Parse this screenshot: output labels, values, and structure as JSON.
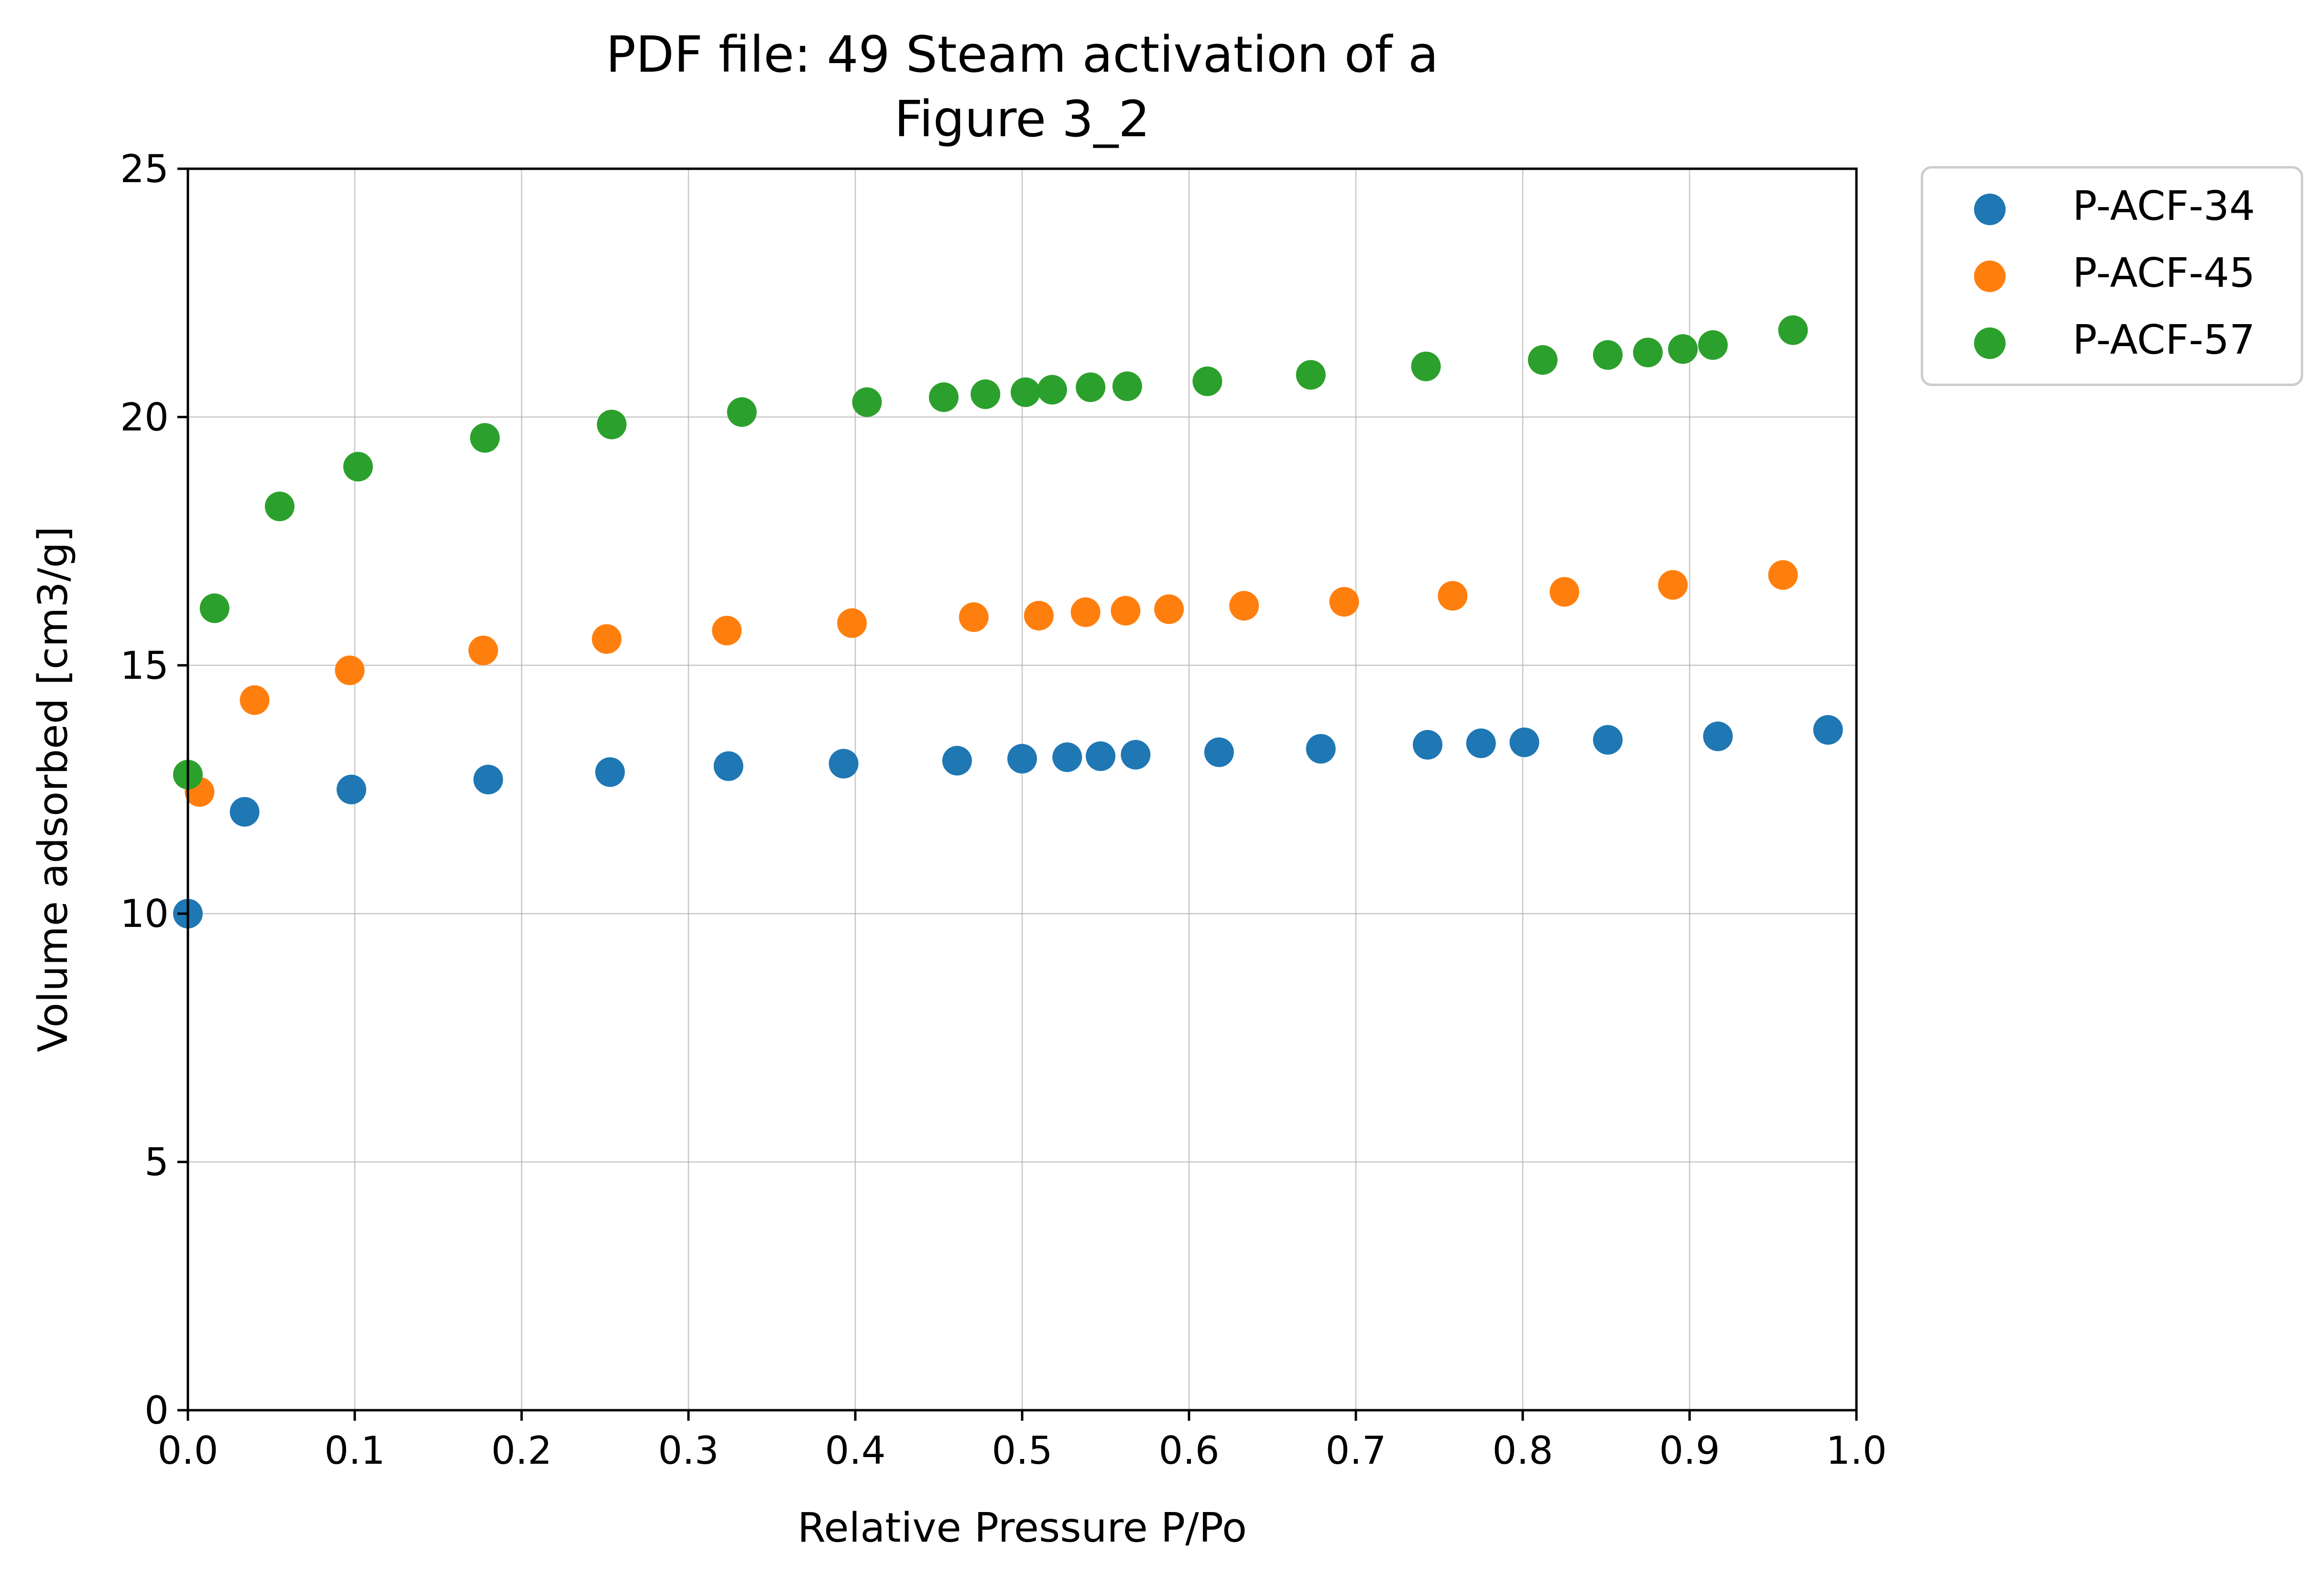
{
  "chart_data": {
    "type": "scatter",
    "title": [
      "PDF file: 49 Steam activation of a",
      "Figure 3_2"
    ],
    "xlabel": "Relative Pressure P/Po",
    "ylabel": "Volume adsorbed [cm3/g]",
    "xlim": [
      0.0,
      1.0
    ],
    "ylim": [
      0,
      25
    ],
    "xticks": [
      "0.0",
      "0.1",
      "0.2",
      "0.3",
      "0.4",
      "0.5",
      "0.6",
      "0.7",
      "0.8",
      "0.9",
      "1.0"
    ],
    "yticks": [
      "0",
      "5",
      "10",
      "15",
      "20",
      "25"
    ],
    "grid": true,
    "legend_position": "outside-top-right",
    "series": [
      {
        "name": "P-ACF-34",
        "color": "#1f77b4",
        "x": [
          0.0,
          0.034,
          0.098,
          0.18,
          0.253,
          0.324,
          0.393,
          0.461,
          0.5,
          0.527,
          0.547,
          0.568,
          0.618,
          0.679,
          0.743,
          0.775,
          0.801,
          0.851,
          0.917,
          0.983
        ],
        "y": [
          10.0,
          12.05,
          12.5,
          12.7,
          12.85,
          12.97,
          13.02,
          13.08,
          13.12,
          13.15,
          13.17,
          13.2,
          13.25,
          13.32,
          13.4,
          13.43,
          13.45,
          13.5,
          13.57,
          13.7
        ]
      },
      {
        "name": "P-ACF-45",
        "color": "#ff7f0e",
        "x": [
          0.007,
          0.04,
          0.097,
          0.177,
          0.251,
          0.323,
          0.398,
          0.471,
          0.51,
          0.538,
          0.562,
          0.588,
          0.633,
          0.693,
          0.758,
          0.825,
          0.89,
          0.956
        ],
        "y": [
          12.45,
          14.3,
          14.9,
          15.3,
          15.53,
          15.7,
          15.85,
          15.97,
          16.0,
          16.07,
          16.1,
          16.13,
          16.2,
          16.28,
          16.4,
          16.48,
          16.62,
          16.82
        ]
      },
      {
        "name": "P-ACF-57",
        "color": "#2ca02c",
        "x": [
          0.0,
          0.016,
          0.055,
          0.102,
          0.178,
          0.254,
          0.332,
          0.407,
          0.453,
          0.478,
          0.502,
          0.518,
          0.541,
          0.563,
          0.611,
          0.673,
          0.742,
          0.812,
          0.851,
          0.875,
          0.896,
          0.914,
          0.962
        ],
        "y": [
          12.8,
          16.15,
          18.2,
          19.0,
          19.58,
          19.85,
          20.1,
          20.3,
          20.4,
          20.46,
          20.5,
          20.55,
          20.6,
          20.62,
          20.72,
          20.85,
          21.02,
          21.15,
          21.25,
          21.3,
          21.37,
          21.45,
          21.75
        ]
      }
    ]
  }
}
